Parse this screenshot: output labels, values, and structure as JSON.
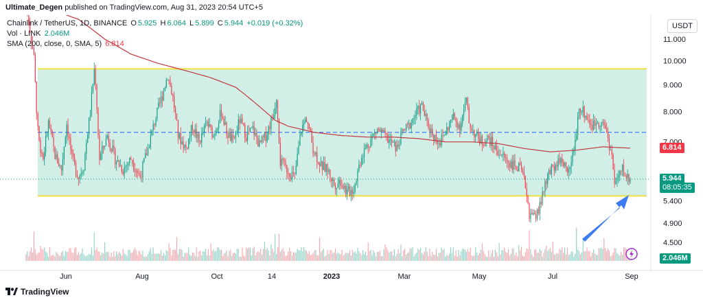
{
  "header": {
    "publisher": "Ultimate_Degen",
    "published_text": "published on TradingView.com, Aug 31, 2023 20:54 UTC+5"
  },
  "legend": {
    "symbol": "Chainlink / TetherUS, 1D, BINANCE",
    "o_label": "O",
    "o_value": "5.925",
    "h_label": "H",
    "h_value": "6.064",
    "l_label": "L",
    "l_value": "5.899",
    "c_label": "C",
    "c_value": "5.944",
    "change": "+0.019 (+0.32%)",
    "vol_label": "Vol · LINK",
    "vol_value": "2.046M",
    "sma_label": "SMA (200, close, 0, SMA, 5)",
    "sma_value": "6.814"
  },
  "currency_button": "USDT",
  "price_tags": {
    "last_price": "5.944",
    "countdown": "08:05:35",
    "sma_price": "6.814",
    "volume": "2.046M"
  },
  "colors": {
    "up": "#089981",
    "down": "#f23645",
    "channel_fill": "#c9ebe3",
    "channel_border": "#f0e040",
    "sma": "#c2373e",
    "midline": "#2962ff",
    "arrow": "#3c7cf0",
    "lightning": "#a02cc8"
  },
  "footer": {
    "logo_text": "TradingView"
  },
  "chart_data": {
    "type": "candlestick",
    "y_scale": "log",
    "yticks": [
      "11.000",
      "10.000",
      "9.000",
      "8.000",
      "7.000",
      "5.400",
      "4.900",
      "4.500"
    ],
    "ytick_values": [
      11.0,
      10.0,
      9.0,
      8.0,
      7.0,
      5.4,
      4.9,
      4.5
    ],
    "xticks": [
      "Jun",
      "Aug",
      "Oct",
      "14",
      "2023",
      "Mar",
      "May",
      "Jul",
      "Sep"
    ],
    "channel": {
      "top": 9.65,
      "bottom": 5.52,
      "mid": 7.3
    },
    "price_path": [
      [
        1,
        12.5
      ],
      [
        4,
        11.0
      ],
      [
        6,
        10.2
      ],
      [
        8,
        8.0
      ],
      [
        10,
        7.0
      ],
      [
        13,
        6.5
      ],
      [
        17,
        7.6
      ],
      [
        22,
        6.6
      ],
      [
        27,
        6.2
      ],
      [
        31,
        7.6
      ],
      [
        35,
        6.5
      ],
      [
        40,
        6.0
      ],
      [
        44,
        6.3
      ],
      [
        49,
        8.0
      ],
      [
        52,
        9.6
      ],
      [
        56,
        6.5
      ],
      [
        62,
        7.2
      ],
      [
        68,
        6.5
      ],
      [
        74,
        6.2
      ],
      [
        80,
        6.5
      ],
      [
        87,
        6.0
      ],
      [
        93,
        6.8
      ],
      [
        99,
        7.8
      ],
      [
        104,
        8.6
      ],
      [
        108,
        9.4
      ],
      [
        112,
        8.5
      ],
      [
        116,
        7.2
      ],
      [
        122,
        6.8
      ],
      [
        127,
        7.5
      ],
      [
        132,
        7.0
      ],
      [
        138,
        7.6
      ],
      [
        143,
        7.2
      ],
      [
        149,
        8.0
      ],
      [
        153,
        7.3
      ],
      [
        158,
        7.0
      ],
      [
        163,
        7.7
      ],
      [
        168,
        7.2
      ],
      [
        173,
        7.4
      ],
      [
        178,
        6.9
      ],
      [
        183,
        7.2
      ],
      [
        188,
        7.8
      ],
      [
        191,
        8.5
      ],
      [
        194,
        6.4
      ],
      [
        199,
        6.2
      ],
      [
        205,
        6.0
      ],
      [
        210,
        7.4
      ],
      [
        214,
        7.8
      ],
      [
        219,
        6.8
      ],
      [
        225,
        6.3
      ],
      [
        230,
        6.2
      ],
      [
        235,
        5.8
      ],
      [
        240,
        5.9
      ],
      [
        245,
        5.6
      ],
      [
        250,
        5.7
      ],
      [
        256,
        6.6
      ],
      [
        262,
        7.0
      ],
      [
        268,
        7.4
      ],
      [
        273,
        7.2
      ],
      [
        278,
        7.0
      ],
      [
        283,
        6.8
      ],
      [
        287,
        7.3
      ],
      [
        292,
        7.5
      ],
      [
        297,
        7.9
      ],
      [
        302,
        8.2
      ],
      [
        306,
        7.6
      ],
      [
        311,
        7.2
      ],
      [
        316,
        7.0
      ],
      [
        321,
        7.4
      ],
      [
        326,
        7.8
      ],
      [
        331,
        7.5
      ],
      [
        336,
        8.4
      ],
      [
        338,
        7.6
      ],
      [
        343,
        7.2
      ],
      [
        348,
        7.0
      ],
      [
        353,
        7.1
      ],
      [
        358,
        6.8
      ],
      [
        363,
        6.6
      ],
      [
        368,
        6.4
      ],
      [
        373,
        6.3
      ],
      [
        377,
        6.2
      ],
      [
        381,
        5.8
      ],
      [
        384,
        5.1
      ],
      [
        387,
        5.0
      ],
      [
        390,
        5.1
      ],
      [
        394,
        5.5
      ],
      [
        398,
        6.0
      ],
      [
        403,
        6.3
      ],
      [
        407,
        6.5
      ],
      [
        411,
        6.3
      ],
      [
        415,
        6.2
      ],
      [
        419,
        7.0
      ],
      [
        422,
        8.2
      ],
      [
        425,
        8.0
      ],
      [
        428,
        7.8
      ],
      [
        432,
        7.5
      ],
      [
        436,
        7.7
      ],
      [
        439,
        7.6
      ],
      [
        442,
        7.5
      ],
      [
        445,
        6.9
      ],
      [
        447,
        6.6
      ],
      [
        449,
        5.8
      ],
      [
        452,
        6.0
      ],
      [
        455,
        6.2
      ],
      [
        458,
        6.0
      ],
      [
        461,
        5.95
      ]
    ],
    "sma_path": [
      [
        20,
        12.5
      ],
      [
        40,
        12.0
      ],
      [
        60,
        11.0
      ],
      [
        80,
        10.3
      ],
      [
        100,
        9.9
      ],
      [
        120,
        9.6
      ],
      [
        140,
        9.3
      ],
      [
        160,
        8.9
      ],
      [
        180,
        8.1
      ],
      [
        190,
        7.7
      ],
      [
        200,
        7.5
      ],
      [
        220,
        7.3
      ],
      [
        240,
        7.2
      ],
      [
        260,
        7.15
      ],
      [
        280,
        7.15
      ],
      [
        300,
        7.1
      ],
      [
        320,
        7.0
      ],
      [
        340,
        7.0
      ],
      [
        360,
        6.95
      ],
      [
        380,
        6.8
      ],
      [
        400,
        6.7
      ],
      [
        420,
        6.75
      ],
      [
        440,
        6.85
      ],
      [
        461,
        6.81
      ]
    ]
  }
}
